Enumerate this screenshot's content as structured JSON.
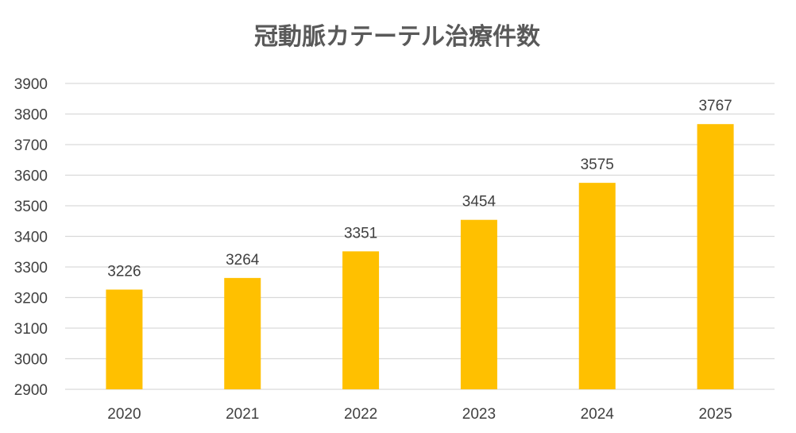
{
  "chart_data": {
    "type": "bar",
    "title": "冠動脈カテーテル治療件数",
    "xlabel": "",
    "ylabel": "",
    "categories": [
      "2020",
      "2021",
      "2022",
      "2023",
      "2024",
      "2025"
    ],
    "series": [
      {
        "values": [
          3226,
          3264,
          3351,
          3454,
          3575,
          3767
        ],
        "color": "#FFC000"
      }
    ],
    "ylim": [
      2900,
      3900
    ],
    "yticks": [
      3900,
      3800,
      3700,
      3600,
      3500,
      3400,
      3300,
      3200,
      3100,
      3000,
      2900
    ],
    "grid": true,
    "gridline_color": "#D9D9D9",
    "legend": "none",
    "data_labels": true
  }
}
